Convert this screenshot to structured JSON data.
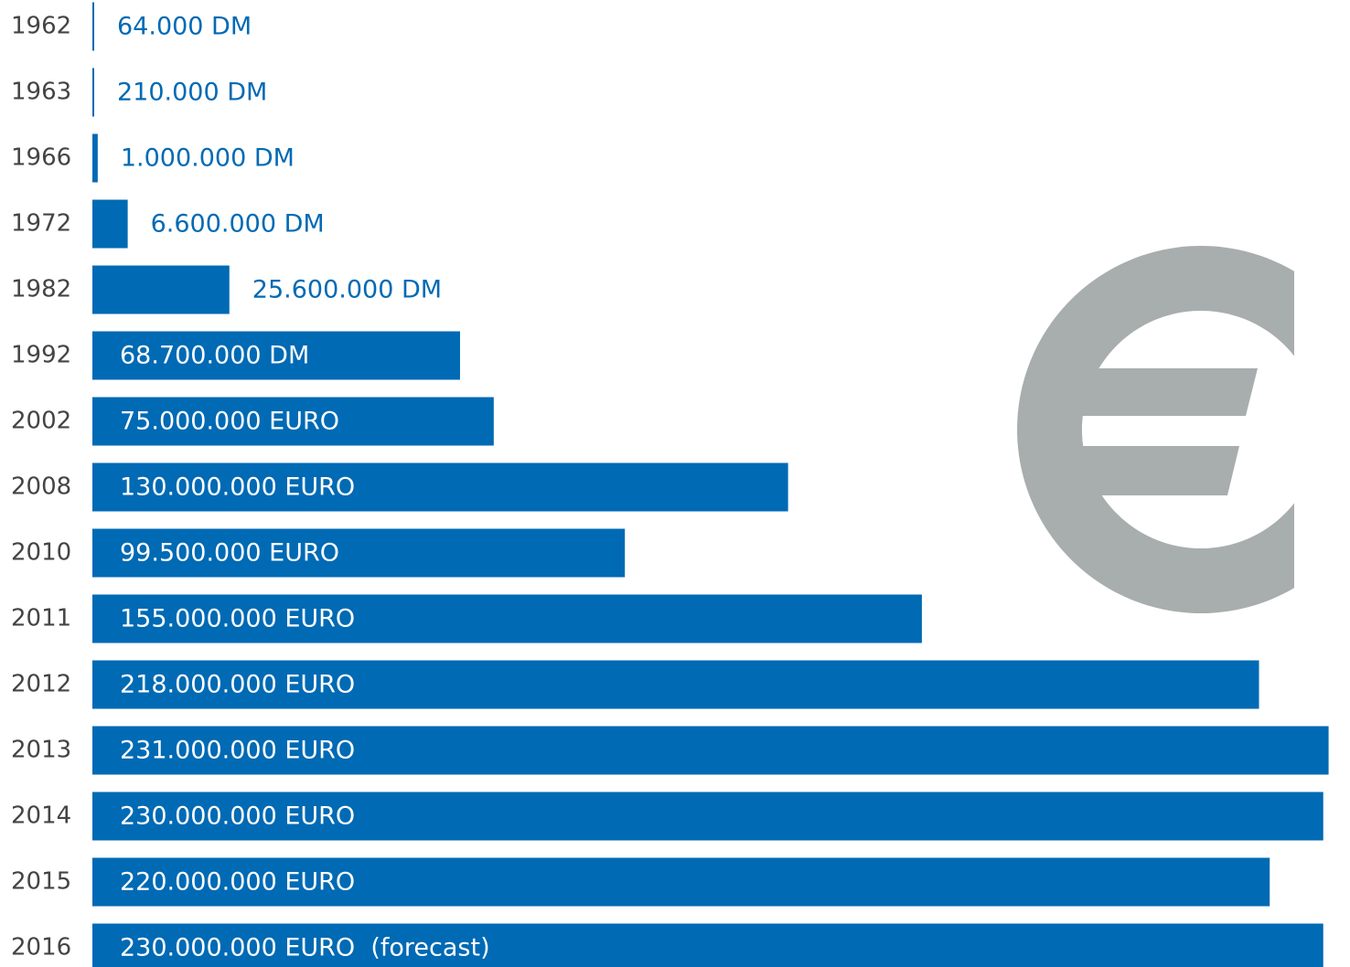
{
  "chart_data": {
    "type": "bar",
    "orientation": "horizontal",
    "categories": [
      "1962",
      "1963",
      "1966",
      "1972",
      "1982",
      "1992",
      "2002",
      "2008",
      "2010",
      "2011",
      "2012",
      "2013",
      "2014",
      "2015",
      "2016"
    ],
    "values": [
      64000,
      210000,
      1000000,
      6600000,
      25600000,
      68700000,
      75000000,
      130000000,
      99500000,
      155000000,
      218000000,
      231000000,
      230000000,
      220000000,
      230000000
    ],
    "value_labels": [
      "64.000 DM",
      "210.000 DM",
      "1.000.000 DM",
      "6.600.000 DM",
      "25.600.000 DM",
      "68.700.000 DM",
      "75.000.000 EURO",
      "130.000.000 EURO",
      "99.500.000 EURO",
      "155.000.000 EURO",
      "218.000.000 EURO",
      "231.000.000 EURO",
      "230.000.000 EURO",
      "220.000.000 EURO",
      "230.000.000 EURO  (forecast)"
    ],
    "color": "#006ab4",
    "xlim": [
      0,
      235000000
    ]
  }
}
